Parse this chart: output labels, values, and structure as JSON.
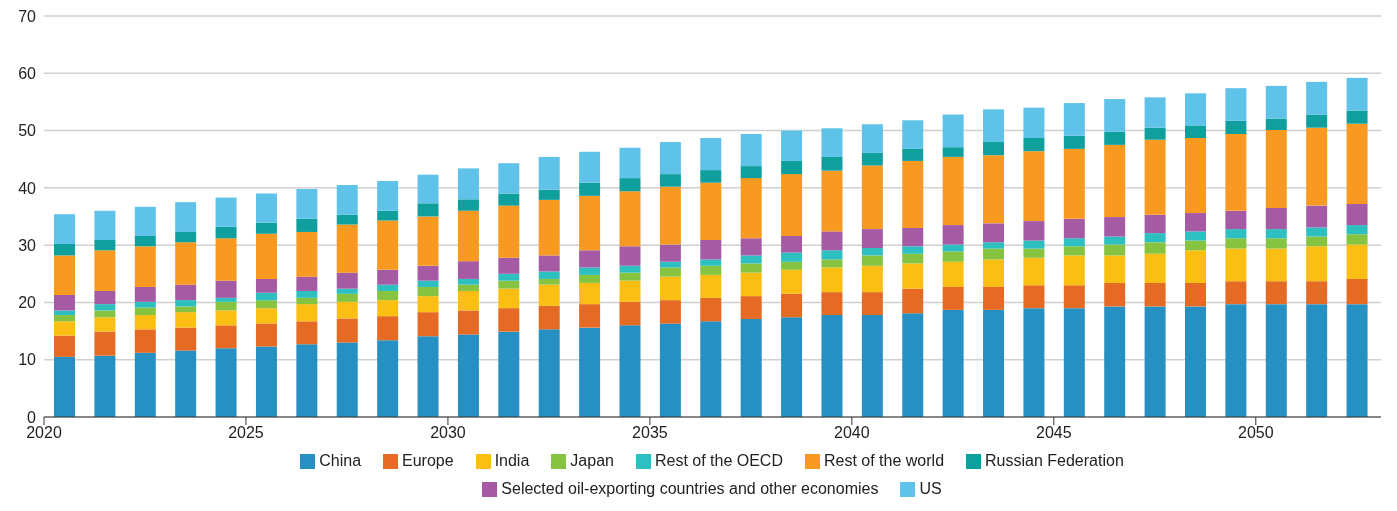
{
  "chart_data": {
    "type": "bar",
    "stacked": true,
    "x": [
      2020.5,
      2021.5,
      2022.5,
      2023.5,
      2024.5,
      2025.5,
      2026.5,
      2027.5,
      2028.5,
      2029.5,
      2030.5,
      2031.5,
      2032.5,
      2033.5,
      2034.5,
      2035.5,
      2036.5,
      2037.5,
      2038.5,
      2039.5,
      2040.5,
      2041.5,
      2042.5,
      2043.5,
      2044.5,
      2045.5,
      2046.5,
      2047.5,
      2048.5,
      2049.5,
      2050.5,
      2051.5,
      2052.5
    ],
    "xlim": [
      2020,
      2053.1
    ],
    "xticks": [
      2020,
      2025,
      2030,
      2035,
      2040,
      2045,
      2050
    ],
    "ylim": [
      0,
      70
    ],
    "yticks": [
      0,
      10,
      20,
      30,
      40,
      50,
      60,
      70
    ],
    "grid": "y",
    "legend": "bottom",
    "series": [
      {
        "name": "China",
        "color": "#2690c3",
        "values": [
          10.5,
          10.7,
          11.2,
          11.6,
          12.0,
          12.3,
          12.7,
          13.0,
          13.4,
          14.1,
          14.4,
          14.9,
          15.3,
          15.6,
          16.0,
          16.3,
          16.7,
          17.1,
          17.4,
          17.8,
          17.8,
          18.1,
          18.7,
          18.7,
          19.0,
          19.0,
          19.3,
          19.3,
          19.3,
          19.7,
          19.7,
          19.7,
          19.7
        ]
      },
      {
        "name": "Europe",
        "color": "#e56a23",
        "values": [
          3.7,
          4.2,
          4.1,
          4.0,
          4.0,
          4.0,
          4.0,
          4.2,
          4.2,
          4.2,
          4.2,
          4.1,
          4.1,
          4.1,
          4.1,
          4.1,
          4.1,
          4.0,
          4.1,
          4.0,
          4.0,
          4.3,
          4.0,
          4.0,
          4.0,
          4.0,
          4.1,
          4.1,
          4.1,
          4.0,
          4.0,
          4.0,
          4.4
        ]
      },
      {
        "name": "India",
        "color": "#fbbf14",
        "values": [
          2.5,
          2.5,
          2.5,
          2.7,
          2.6,
          2.7,
          3.0,
          2.9,
          2.8,
          2.8,
          3.4,
          3.4,
          3.7,
          3.7,
          3.7,
          4.1,
          4.0,
          4.1,
          4.2,
          4.3,
          4.6,
          4.4,
          4.4,
          4.8,
          4.8,
          5.2,
          4.8,
          5.1,
          5.7,
          5.7,
          5.7,
          6.1,
          6.0
        ]
      },
      {
        "name": "Japan",
        "color": "#86c341",
        "values": [
          1.1,
          1.2,
          1.3,
          1.0,
          1.5,
          1.4,
          1.1,
          1.4,
          1.6,
          1.6,
          1.1,
          1.4,
          1.0,
          1.4,
          1.4,
          1.6,
          1.6,
          1.6,
          1.4,
          1.4,
          1.8,
          1.7,
          1.8,
          1.9,
          1.6,
          1.6,
          1.9,
          2.0,
          1.7,
          1.8,
          1.8,
          1.7,
          1.8
        ]
      },
      {
        "name": "Rest of the OECD",
        "color": "#2ebfc0",
        "values": [
          0.8,
          1.1,
          1.0,
          1.1,
          0.7,
          1.3,
          1.2,
          0.9,
          1.1,
          1.1,
          1.0,
          1.2,
          1.3,
          1.3,
          1.2,
          1.0,
          1.1,
          1.4,
          1.6,
          1.6,
          1.3,
          1.3,
          1.2,
          1.1,
          1.4,
          1.4,
          1.4,
          1.6,
          1.6,
          1.6,
          1.6,
          1.6,
          1.6
        ]
      },
      {
        "name": "Selected oil-exporting countries and other economies",
        "color": "#a55ba4",
        "values": [
          2.7,
          2.3,
          2.6,
          2.7,
          3.0,
          2.4,
          2.5,
          2.8,
          2.6,
          2.6,
          3.1,
          2.8,
          2.8,
          3.0,
          3.4,
          3.0,
          3.4,
          3.0,
          2.9,
          3.3,
          3.3,
          3.2,
          3.4,
          3.3,
          3.4,
          3.4,
          3.4,
          3.2,
          3.2,
          3.2,
          3.7,
          3.8,
          3.7
        ]
      },
      {
        "name": "Rest of the world",
        "color": "#f89a22",
        "values": [
          6.9,
          7.1,
          7.1,
          7.4,
          7.4,
          7.9,
          7.8,
          8.4,
          8.6,
          8.6,
          8.8,
          9.1,
          9.7,
          9.5,
          9.6,
          10.1,
          10.0,
          10.5,
          10.8,
          10.6,
          11.1,
          11.7,
          11.9,
          11.9,
          12.2,
          12.2,
          12.6,
          13.1,
          13.1,
          13.4,
          13.6,
          13.6,
          14.0
        ]
      },
      {
        "name": "Russian Federation",
        "color": "#0fa09e",
        "values": [
          2.0,
          1.8,
          1.8,
          1.8,
          2.0,
          1.9,
          2.3,
          1.7,
          1.7,
          2.3,
          2.0,
          2.1,
          1.8,
          2.3,
          2.3,
          2.2,
          2.2,
          2.1,
          2.3,
          2.4,
          2.2,
          2.1,
          1.7,
          2.3,
          2.3,
          2.3,
          2.3,
          2.1,
          2.2,
          2.3,
          2.0,
          2.3,
          2.3
        ]
      },
      {
        "name": "US",
        "color": "#5fc2e8",
        "values": [
          5.2,
          5.1,
          5.1,
          5.2,
          5.1,
          5.1,
          5.2,
          5.2,
          5.2,
          5.0,
          5.4,
          5.3,
          5.7,
          5.4,
          5.3,
          5.6,
          5.6,
          5.6,
          5.3,
          5.0,
          5.0,
          5.0,
          5.7,
          5.7,
          5.3,
          5.7,
          5.7,
          5.3,
          5.6,
          5.7,
          5.7,
          5.7,
          5.7
        ]
      }
    ]
  }
}
